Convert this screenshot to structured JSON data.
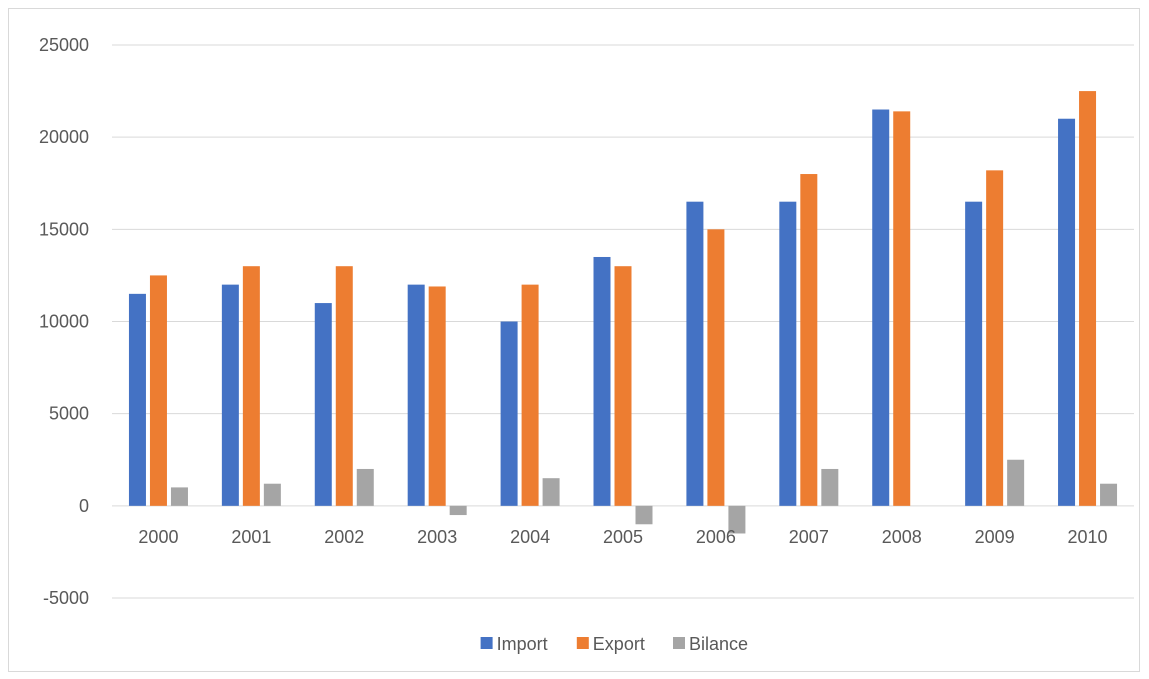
{
  "chart_data": {
    "type": "bar",
    "categories": [
      "2000",
      "2001",
      "2002",
      "2003",
      "2004",
      "2005",
      "2006",
      "2007",
      "2008",
      "2009",
      "2010"
    ],
    "series": [
      {
        "name": "Import",
        "color": "#4472c4",
        "values": [
          11500,
          12000,
          11000,
          12000,
          10000,
          13500,
          16500,
          16500,
          21500,
          16500,
          21000
        ]
      },
      {
        "name": "Export",
        "color": "#ed7d31",
        "values": [
          12500,
          13000,
          13000,
          11900,
          12000,
          13000,
          15000,
          18000,
          21400,
          18200,
          22500
        ]
      },
      {
        "name": "Bilance",
        "color": "#a5a5a5",
        "values": [
          1000,
          1200,
          2000,
          -500,
          1500,
          -1000,
          -1500,
          2000,
          0,
          2500,
          1200
        ]
      }
    ],
    "ylim": [
      -5000,
      25000
    ],
    "yticks": [
      25000,
      20000,
      15000,
      10000,
      5000,
      0,
      -5000
    ],
    "grid": true,
    "legend": "bottom",
    "title": "",
    "xlabel": "",
    "ylabel": ""
  }
}
